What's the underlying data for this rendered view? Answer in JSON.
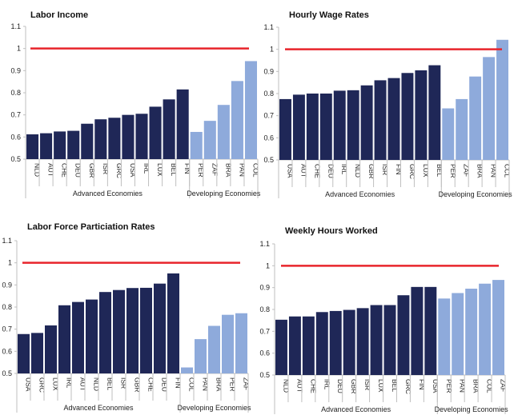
{
  "colors": {
    "advanced": "#1f2757",
    "developing": "#8eaadb",
    "reference": "#e8242b",
    "axis": "#bfbfbf"
  },
  "chart_data": [
    {
      "type": "bar",
      "title": "Labor Income",
      "xlabel": "",
      "ylabel": "",
      "ylim": [
        0.5,
        1.1
      ],
      "yticks": [
        "0.5",
        "0.6",
        "0.7",
        "0.8",
        "0.9",
        "1",
        "1.1"
      ],
      "reference_line": 1.0,
      "grid": false,
      "groups": [
        {
          "name": "Advanced Economies",
          "categories": [
            "NLD",
            "AUT",
            "CHE",
            "DEU",
            "GBR",
            "ISR",
            "GRC",
            "USA",
            "IRL",
            "LUX",
            "BEL",
            "FIN"
          ],
          "values": [
            0.612,
            0.617,
            0.625,
            0.628,
            0.66,
            0.68,
            0.687,
            0.7,
            0.705,
            0.737,
            0.77,
            0.815
          ]
        },
        {
          "name": "Developing Economies",
          "categories": [
            "PER",
            "ZAF",
            "BRA",
            "PAN",
            "COL"
          ],
          "values": [
            0.623,
            0.673,
            0.745,
            0.853,
            0.943
          ]
        }
      ]
    },
    {
      "type": "bar",
      "title": "Hourly Wage Rates",
      "xlabel": "",
      "ylabel": "",
      "ylim": [
        0.5,
        1.1
      ],
      "yticks": [
        "0.5",
        "0.6",
        "0.7",
        "0.8",
        "0.9",
        "1",
        "1.1"
      ],
      "reference_line": 1.0,
      "grid": false,
      "groups": [
        {
          "name": "Advanced Economies",
          "categories": [
            "USA",
            "AUT",
            "CHE",
            "DEU",
            "IRL",
            "NLD",
            "GBR",
            "ISR",
            "FIN",
            "GRC",
            "LUX",
            "BEL"
          ],
          "values": [
            0.775,
            0.795,
            0.8,
            0.8,
            0.813,
            0.815,
            0.837,
            0.86,
            0.87,
            0.893,
            0.905,
            0.928
          ]
        },
        {
          "name": "Developing Economies",
          "categories": [
            "PER",
            "ZAF",
            "BRA",
            "PAN",
            "CCL"
          ],
          "values": [
            0.733,
            0.775,
            0.877,
            0.965,
            1.043
          ]
        }
      ]
    },
    {
      "type": "bar",
      "title": "Labor Force Particiation Rates",
      "xlabel": "",
      "ylabel": "",
      "ylim": [
        0.5,
        1.1
      ],
      "yticks": [
        "0.5",
        "0.6",
        "0.7",
        "0.8",
        "0.9",
        "1",
        "1.1"
      ],
      "reference_line": 1.0,
      "grid": false,
      "groups": [
        {
          "name": "Advanced Economies",
          "categories": [
            "USA",
            "GRC",
            "LUX",
            "IRL",
            "AUT",
            "NLD",
            "BEL",
            "ISR",
            "GBR",
            "CHE",
            "DEU",
            "FIN"
          ],
          "values": [
            0.678,
            0.683,
            0.717,
            0.808,
            0.823,
            0.834,
            0.868,
            0.877,
            0.886,
            0.887,
            0.906,
            0.952
          ]
        },
        {
          "name": "Developing Economies",
          "categories": [
            "COL",
            "PAN",
            "BRA",
            "PER",
            "ZAF"
          ],
          "values": [
            0.527,
            0.655,
            0.715,
            0.765,
            0.772
          ]
        }
      ]
    },
    {
      "type": "bar",
      "title": "Weekly Hours Worked",
      "xlabel": "",
      "ylabel": "",
      "ylim": [
        0.5,
        1.1
      ],
      "yticks": [
        "0.5",
        "0.6",
        "0.7",
        "0.8",
        "0.9",
        "1",
        "1.1"
      ],
      "reference_line": 1.0,
      "grid": false,
      "groups": [
        {
          "name": "Advanced Economies",
          "categories": [
            "NLD",
            "AUT",
            "CHE",
            "IRL",
            "DEU",
            "GBR",
            "ISR",
            "LUX",
            "BEL",
            "GRC",
            "FIN",
            "USA"
          ],
          "values": [
            0.753,
            0.768,
            0.768,
            0.788,
            0.793,
            0.798,
            0.806,
            0.82,
            0.82,
            0.865,
            0.903,
            0.903
          ]
        },
        {
          "name": "Developing Economies",
          "categories": [
            "PER",
            "PAN",
            "BRA",
            "COL",
            "ZAF"
          ],
          "values": [
            0.85,
            0.875,
            0.895,
            0.918,
            0.935
          ]
        }
      ]
    }
  ]
}
